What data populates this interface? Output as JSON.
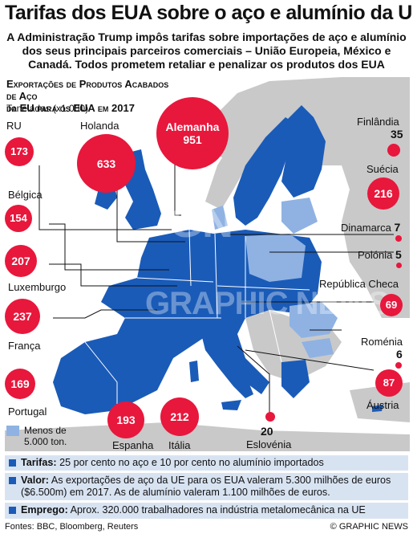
{
  "title": "Tarifas dos EUA sobre o aço e alumínio da UE",
  "subtitle": "A Administração Trump impôs tarifas sobre importações de aço e alumínio dos seus principais parceiros comerciais – União Europeia, México e Canadá. Todos prometem retaliar e penalizar os produtos dos EUA",
  "section_title_line1": "Exportações de Produtos Acabados de Aço",
  "section_title_line2": "da EU para os EUA em 2017",
  "units": "Toneladas (x1.000)",
  "countries": [
    {
      "name": "RU",
      "value": "173"
    },
    {
      "name": "Holanda",
      "value": "633"
    },
    {
      "name": "Alemanha",
      "value": "951"
    },
    {
      "name": "Finlândia",
      "value": "35"
    },
    {
      "name": "Suécia",
      "value": "216"
    },
    {
      "name": "Bélgica",
      "value": "154"
    },
    {
      "name": "Dinamarca",
      "value": "7"
    },
    {
      "name": "Polónia",
      "value": "5"
    },
    {
      "name": "Luxemburgo",
      "value": "207"
    },
    {
      "name": "República Checa",
      "value": "69"
    },
    {
      "name": "França",
      "value": "237"
    },
    {
      "name": "Roménia",
      "value": "6"
    },
    {
      "name": "Portugal",
      "value": "169"
    },
    {
      "name": "Áustria",
      "value": "87"
    },
    {
      "name": "Espanha",
      "value": "193"
    },
    {
      "name": "Itália",
      "value": "212"
    },
    {
      "name": "Eslovénia",
      "value": "20"
    }
  ],
  "legend": {
    "label": "Menos de 5.000 ton.",
    "color": "#8fb2e3"
  },
  "colors": {
    "eu": "#1a5bb8",
    "bubble": "#e8173c",
    "nonEu": "#c9c9c9",
    "panel": "#d8e3f2"
  },
  "info": [
    {
      "label": "Tarifas:",
      "text": "25 por cento no aço e 10 por cento no alumínio importados"
    },
    {
      "label": "Valor:",
      "text": "As exportações de aço da UE para os EUA valeram 5.300 milhões de euros ($6.500m) em 2017. As de alumínio valeram 1.100 milhões de euros."
    },
    {
      "label": "Emprego:",
      "text": "Aprox. 320.000 trabalhadores na indústria metalomecânica na UE"
    }
  ],
  "sources": "Fontes: BBC, Bloomberg, Reuters",
  "copyright": "© GRAPHIC NEWS",
  "watermark": "GRAPHIC NEWS"
}
